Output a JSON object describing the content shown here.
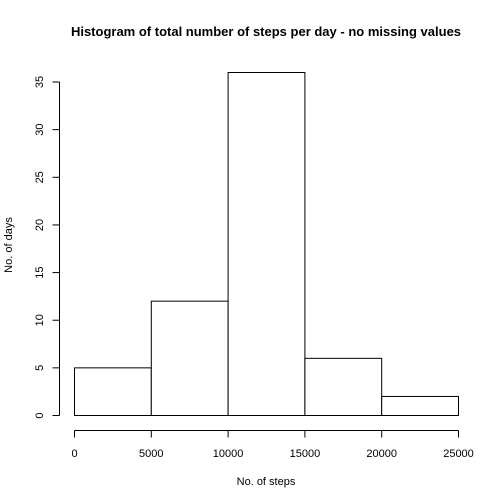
{
  "chart_data": {
    "type": "bar",
    "title": "Histogram of total number of steps per day - no missing values",
    "xlabel": "No. of steps",
    "ylabel": "No. of days",
    "bins": [
      {
        "from": 0,
        "to": 5000,
        "count": 5
      },
      {
        "from": 5000,
        "to": 10000,
        "count": 12
      },
      {
        "from": 10000,
        "to": 15000,
        "count": 36
      },
      {
        "from": 15000,
        "to": 20000,
        "count": 6
      },
      {
        "from": 20000,
        "to": 25000,
        "count": 2
      }
    ],
    "xlim": [
      0,
      25000
    ],
    "ylim": [
      0,
      36
    ],
    "xticks": [
      0,
      5000,
      10000,
      15000,
      20000,
      25000
    ],
    "xtick_labels": [
      "0",
      "5000",
      "10000",
      "15000",
      "20000",
      "25000"
    ],
    "yticks": [
      0,
      5,
      10,
      15,
      20,
      25,
      30,
      35
    ],
    "ytick_labels": [
      "0",
      "5",
      "10",
      "15",
      "20",
      "25",
      "30",
      "35"
    ],
    "grid": false,
    "bar_fill": "#ffffff",
    "bar_stroke": "#000000"
  }
}
